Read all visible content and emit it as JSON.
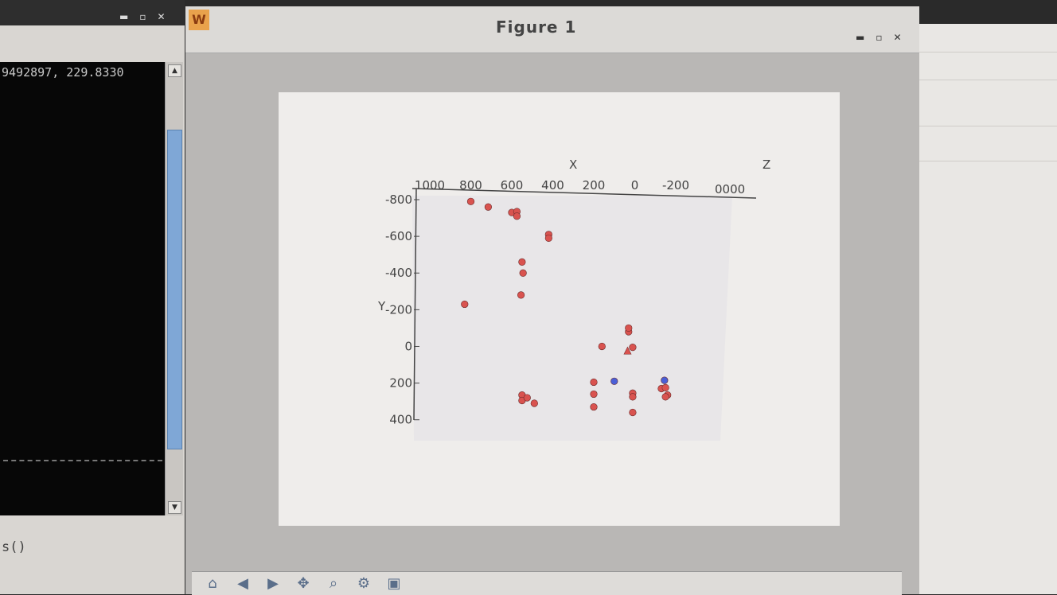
{
  "terminal": {
    "visible_line": "9492897, 229.8330",
    "bottom_text": "s()"
  },
  "figure_window": {
    "title": "Figure 1",
    "controls": [
      "minimize",
      "maximize",
      "close"
    ]
  },
  "toolbar": {
    "buttons": [
      "home-icon",
      "back-icon",
      "forward-icon",
      "pan-icon",
      "zoom-icon",
      "configure-icon",
      "save-icon"
    ]
  },
  "chart_data": {
    "type": "scatter",
    "axis_labels": {
      "x": "X",
      "y": "Y",
      "z": "Z"
    },
    "x_ticks": [
      "1000",
      "800",
      "600",
      "400",
      "200",
      "0",
      "-200"
    ],
    "y_ticks": [
      "-800",
      "-600",
      "-400",
      "-200",
      "0",
      "200",
      "400"
    ],
    "xlim": [
      1000,
      -300
    ],
    "ylim": [
      -800,
      400
    ],
    "colors": {
      "red": "#d9534f",
      "blue": "#4a5fd6",
      "axis": "#444444"
    },
    "series": [
      {
        "color": "red",
        "marker": "circle",
        "points": [
          [
            800,
            -790
          ],
          [
            715,
            -760
          ],
          [
            600,
            -730
          ],
          [
            575,
            -735
          ],
          [
            575,
            -710
          ],
          [
            420,
            -610
          ],
          [
            420,
            -590
          ],
          [
            550,
            -460
          ],
          [
            545,
            -400
          ],
          [
            555,
            -280
          ],
          [
            830,
            -230
          ],
          [
            160,
            0
          ],
          [
            10,
            5
          ],
          [
            30,
            -80
          ],
          [
            30,
            -100
          ],
          [
            200,
            195
          ],
          [
            200,
            260
          ],
          [
            200,
            330
          ],
          [
            550,
            265
          ],
          [
            550,
            295
          ],
          [
            525,
            280
          ],
          [
            490,
            310
          ],
          [
            10,
            255
          ],
          [
            10,
            275
          ],
          [
            10,
            360
          ],
          [
            -130,
            230
          ],
          [
            -150,
            225
          ],
          [
            -160,
            265
          ],
          [
            -150,
            275
          ]
        ]
      },
      {
        "color": "blue",
        "marker": "circle",
        "points": [
          [
            100,
            190
          ],
          [
            -145,
            185
          ]
        ]
      },
      {
        "color": "red",
        "marker": "triangle",
        "points": [
          [
            35,
            25
          ]
        ]
      }
    ]
  }
}
